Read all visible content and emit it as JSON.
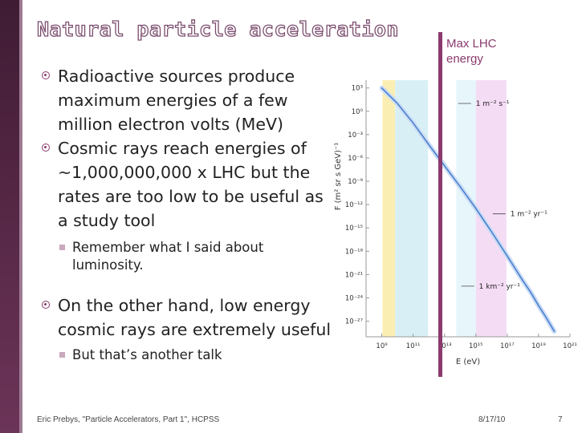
{
  "slide": {
    "title": "Natural particle acceleration",
    "bullets": [
      {
        "text": "Radioactive sources produce maximum energies of a few million electron volts (MeV)"
      },
      {
        "text": "Cosmic rays reach energies of ~1,000,000,000 x LHC but the rates are too low to be useful as a study tool"
      },
      {
        "text": "Remember what I said about luminosity."
      },
      {
        "text": "On the other hand, low energy cosmic rays are extremely useful"
      },
      {
        "text": "But that’s another talk"
      }
    ],
    "annotation": "Max LHC energy",
    "footer": {
      "left": "Eric Prebys, \"Particle Accelerators, Part 1\", HCPSS",
      "date": "8/17/10",
      "page": "7"
    },
    "colors": {
      "accent": "#8b3a6e",
      "sidebar": "#4a2240",
      "curve": "#4a7fcf"
    }
  },
  "chart_data": {
    "type": "line",
    "title": "",
    "xlabel": "E (eV)",
    "ylabel": "F (m² sr s GeV)⁻¹",
    "x_scale": "log",
    "y_scale": "log",
    "x_ticks": [
      "10⁹",
      "10¹¹",
      "10¹³",
      "10¹⁵",
      "10¹⁷",
      "10¹⁹",
      "10²¹"
    ],
    "y_ticks": [
      "10³",
      "10⁰",
      "10⁻³",
      "10⁻⁶",
      "10⁻⁹",
      "10⁻¹²",
      "10⁻¹⁵",
      "10⁻¹⁸",
      "10⁻²¹",
      "10⁻²⁴",
      "10⁻²⁷"
    ],
    "xlim_exp": [
      8,
      21
    ],
    "ylim_exp": [
      -29,
      4
    ],
    "series": [
      {
        "x_exp": [
          9,
          10,
          11,
          12,
          13,
          14,
          15,
          15.5,
          16,
          17,
          18,
          18.5,
          19,
          19.5,
          20
        ],
        "y_exp": [
          3,
          1,
          -1.5,
          -4.3,
          -7,
          -9.7,
          -12.5,
          -14,
          -15.5,
          -18.6,
          -21.8,
          -23.3,
          -25,
          -26.6,
          -28.3
        ]
      }
    ],
    "bands_exp": [
      [
        9.05,
        9.85
      ],
      [
        9.85,
        11.95
      ],
      [
        13.75,
        15
      ],
      [
        15,
        16.95
      ]
    ],
    "bands_colors": [
      "#fbeeb3",
      "#d8f0f5",
      "#e6f6fb",
      "#f5dcf5"
    ],
    "annotations": [
      {
        "text": "1 m⁻² s⁻¹",
        "x_exp": 15,
        "y_exp": 0.7
      },
      {
        "text": "1 m⁻² yr⁻¹",
        "x_exp": 17.2,
        "y_exp": -13.5
      },
      {
        "text": "1 km⁻² yr⁻¹",
        "x_exp": 15.2,
        "y_exp": -22.8
      }
    ],
    "grid": false
  }
}
